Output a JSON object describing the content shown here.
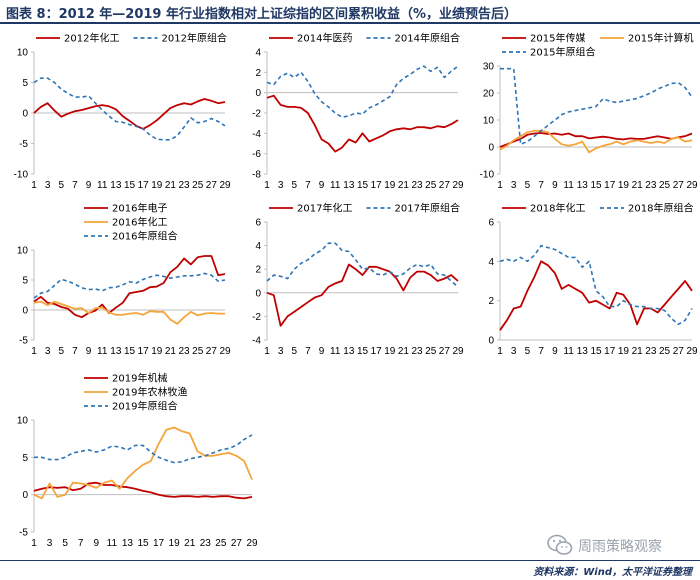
{
  "header": {
    "title": "图表 8：2012 年—2019 年行业指数相对上证综指的区间累积收益（%，业绩预告后）"
  },
  "footer": {
    "source": "资料来源：Wind，太平洋证券整理",
    "watermark_text": "周雨策略观察",
    "watermark_icon": "wechat-icon"
  },
  "colors": {
    "red": "#c00000",
    "blue": "#2e75b6",
    "orange": "#f4a53c",
    "axis": "#bfbfbf",
    "header": "#1f3864"
  },
  "chart_data": [
    {
      "type": "line",
      "id": "c2012",
      "x": [
        1,
        2,
        3,
        4,
        5,
        6,
        7,
        8,
        9,
        10,
        11,
        12,
        13,
        14,
        15,
        16,
        17,
        18,
        19,
        20,
        21,
        22,
        23,
        24,
        25,
        26,
        27,
        28,
        29
      ],
      "x_tick_labels": [
        "1",
        "3",
        "5",
        "7",
        "9",
        "11",
        "13",
        "15",
        "17",
        "19",
        "21",
        "23",
        "25",
        "27",
        "29"
      ],
      "ylim": [
        -10,
        10
      ],
      "yticks": [
        -10,
        -5,
        0,
        5,
        10
      ],
      "legend_columns": 2,
      "series": [
        {
          "name": "2012年化工",
          "style": "solid",
          "color": "#c00000",
          "values": [
            0,
            1,
            1.6,
            0.4,
            -0.6,
            -0.1,
            0.3,
            0.5,
            0.8,
            1.1,
            1.3,
            1.1,
            0.6,
            -0.5,
            -1.3,
            -2.1,
            -2.6,
            -2,
            -1.2,
            -0.2,
            0.8,
            1.3,
            1.6,
            1.4,
            1.9,
            2.3,
            2,
            1.6,
            1.8
          ]
        },
        {
          "name": "2012年原组合",
          "style": "dashed",
          "color": "#2e75b6",
          "values": [
            5,
            5.7,
            5.7,
            5,
            3.9,
            3.2,
            2.6,
            2.6,
            2.8,
            1.6,
            0.5,
            -0.5,
            -1.4,
            -1.5,
            -1.9,
            -2.2,
            -2.6,
            -3.6,
            -4.3,
            -4.4,
            -4.4,
            -3.7,
            -2.3,
            -0.8,
            -1.6,
            -1.4,
            -0.9,
            -1.4,
            -2.1
          ]
        }
      ]
    },
    {
      "type": "line",
      "id": "c2014",
      "x": [
        1,
        2,
        3,
        4,
        5,
        6,
        7,
        8,
        9,
        10,
        11,
        12,
        13,
        14,
        15,
        16,
        17,
        18,
        19,
        20,
        21,
        22,
        23,
        24,
        25,
        26,
        27,
        28,
        29
      ],
      "x_tick_labels": [
        "1",
        "3",
        "5",
        "7",
        "9",
        "11",
        "13",
        "15",
        "17",
        "19",
        "21",
        "23",
        "25",
        "27",
        "29"
      ],
      "ylim": [
        -8,
        4
      ],
      "yticks": [
        -8,
        -6,
        -4,
        -2,
        0,
        2,
        4
      ],
      "legend_columns": 2,
      "series": [
        {
          "name": "2014年医药",
          "style": "solid",
          "color": "#c00000",
          "values": [
            -0.5,
            -0.3,
            -1.2,
            -1.4,
            -1.4,
            -1.5,
            -2,
            -3.2,
            -4.6,
            -5,
            -5.8,
            -5.4,
            -4.6,
            -4.9,
            -4,
            -4.8,
            -4.5,
            -4.2,
            -3.8,
            -3.6,
            -3.5,
            -3.6,
            -3.4,
            -3.4,
            -3.5,
            -3.3,
            -3.4,
            -3.1,
            -2.7
          ]
        },
        {
          "name": "2014年原组合",
          "style": "dashed",
          "color": "#2e75b6",
          "values": [
            1,
            0.8,
            1.6,
            1.9,
            1.5,
            2,
            1.1,
            -0.1,
            -0.9,
            -1.4,
            -2,
            -2.4,
            -2.3,
            -2,
            -2.1,
            -1.5,
            -1.2,
            -0.8,
            -0.4,
            0.8,
            1.4,
            1.8,
            2.3,
            2.6,
            2.1,
            2.5,
            1.5,
            2.1,
            2.6
          ]
        }
      ]
    },
    {
      "type": "line",
      "id": "c2015",
      "x": [
        1,
        2,
        3,
        4,
        5,
        6,
        7,
        8,
        9,
        10,
        11,
        12,
        13,
        14,
        15,
        16,
        17,
        18,
        19,
        20,
        21,
        22,
        23,
        24,
        25,
        26,
        27,
        28,
        29
      ],
      "x_tick_labels": [
        "1",
        "3",
        "5",
        "7",
        "9",
        "11",
        "13",
        "15",
        "17",
        "19",
        "21",
        "23",
        "25",
        "27",
        "29"
      ],
      "ylim": [
        -10,
        30
      ],
      "yticks": [
        -10,
        0,
        10,
        20,
        30
      ],
      "legend_columns": 2,
      "series": [
        {
          "name": "2015年传媒",
          "style": "solid",
          "color": "#c00000",
          "values": [
            0,
            1,
            2,
            3,
            4.5,
            5,
            5.2,
            4.8,
            5,
            4.5,
            5,
            4,
            4,
            3.2,
            3.5,
            3.8,
            3.5,
            3,
            2.8,
            3.2,
            3,
            3,
            3.5,
            4,
            3.5,
            3,
            3.6,
            4,
            5
          ]
        },
        {
          "name": "2015年计算机",
          "style": "solid",
          "color": "#f4a53c",
          "values": [
            -1,
            0.5,
            2.5,
            4,
            5.5,
            6,
            6,
            5.5,
            3,
            1,
            0.5,
            1,
            2,
            -2,
            -0.5,
            0.5,
            1,
            2,
            1,
            2,
            2.5,
            2,
            1.5,
            2,
            1.5,
            3,
            3.5,
            2,
            2.5
          ]
        },
        {
          "name": "2015年原组合",
          "style": "dashed",
          "color": "#2e75b6",
          "values": [
            29,
            29,
            29,
            1,
            2,
            4,
            6,
            8,
            10,
            12,
            13,
            13.5,
            14,
            14.5,
            15,
            17.8,
            17,
            16.5,
            17,
            17.5,
            18,
            19,
            20,
            21.5,
            22.5,
            23.5,
            23.8,
            22,
            18.5
          ]
        }
      ]
    },
    {
      "type": "line",
      "id": "c2016",
      "x": [
        1,
        2,
        3,
        4,
        5,
        6,
        7,
        8,
        9,
        10,
        11,
        12,
        13,
        14,
        15,
        16,
        17,
        18,
        19,
        20,
        21,
        22,
        23,
        24,
        25,
        26,
        27,
        28,
        29
      ],
      "x_tick_labels": [
        "1",
        "3",
        "5",
        "7",
        "9",
        "11",
        "13",
        "15",
        "17",
        "19",
        "21",
        "23",
        "25",
        "27",
        "29"
      ],
      "ylim": [
        -5,
        10
      ],
      "yticks": [
        -5,
        0,
        5,
        10
      ],
      "legend_columns": 1,
      "series": [
        {
          "name": "2016年电子",
          "style": "solid",
          "color": "#c00000",
          "values": [
            1.4,
            2.2,
            1.2,
            1,
            0.5,
            0.2,
            -0.8,
            -1.2,
            -0.5,
            -0.1,
            0.9,
            -0.5,
            0.4,
            1.2,
            2.8,
            3,
            3.2,
            3.8,
            3.9,
            4.5,
            6.3,
            7.2,
            8.6,
            7.6,
            8.8,
            9,
            9,
            5.8,
            6
          ]
        },
        {
          "name": "2016年化工",
          "style": "solid",
          "color": "#f4a53c",
          "values": [
            1.2,
            1.4,
            0.8,
            1.4,
            1,
            0.6,
            0.2,
            0.3,
            -0.5,
            0.3,
            0.4,
            -0.4,
            -0.8,
            -0.8,
            -0.6,
            -0.5,
            -0.8,
            -0.2,
            -0.3,
            -0.3,
            -1.6,
            -2.3,
            -1.2,
            -0.3,
            -0.9,
            -0.6,
            -0.5,
            -0.6,
            -0.6
          ]
        },
        {
          "name": "2016年原组合",
          "style": "dashed",
          "color": "#2e75b6",
          "values": [
            2,
            2.8,
            3.1,
            4.1,
            5.1,
            4.8,
            4.3,
            3.7,
            3.4,
            3.5,
            3.2,
            3.7,
            3.8,
            4.2,
            4.7,
            4.5,
            5.1,
            5.5,
            5.8,
            5.6,
            5.3,
            5.5,
            5.7,
            5.7,
            5.8,
            6.1,
            5.8,
            4.8,
            5
          ]
        }
      ]
    },
    {
      "type": "line",
      "id": "c2017",
      "x": [
        1,
        2,
        3,
        4,
        5,
        6,
        7,
        8,
        9,
        10,
        11,
        12,
        13,
        14,
        15,
        16,
        17,
        18,
        19,
        20,
        21,
        22,
        23,
        24,
        25,
        26,
        27,
        28,
        29
      ],
      "x_tick_labels": [
        "1",
        "3",
        "5",
        "7",
        "9",
        "11",
        "13",
        "15",
        "17",
        "19",
        "21",
        "23",
        "25",
        "27",
        "29"
      ],
      "ylim": [
        -4,
        6
      ],
      "yticks": [
        -4,
        -2,
        0,
        2,
        4,
        6
      ],
      "legend_columns": 2,
      "series": [
        {
          "name": "2017年化工",
          "style": "solid",
          "color": "#c00000",
          "values": [
            0,
            -0.2,
            -2.8,
            -2,
            -1.6,
            -1.2,
            -0.8,
            -0.4,
            -0.2,
            0.5,
            0.8,
            1,
            2.4,
            2,
            1.5,
            2.2,
            2.2,
            2,
            1.8,
            1.2,
            0.2,
            1.3,
            1.8,
            1.8,
            1.5,
            1,
            1.2,
            1.5,
            1
          ]
        },
        {
          "name": "2017年原组合",
          "style": "dashed",
          "color": "#2e75b6",
          "values": [
            1,
            1.5,
            1.4,
            1.2,
            2,
            2.5,
            2.8,
            3.3,
            3.6,
            4.2,
            4.2,
            3.6,
            3.5,
            2.8,
            2,
            2.1,
            1.6,
            1.5,
            1.8,
            1.4,
            1.6,
            2.1,
            2.4,
            2.2,
            2.4,
            1.6,
            1.5,
            1,
            0.5
          ]
        }
      ]
    },
    {
      "type": "line",
      "id": "c2018",
      "x": [
        1,
        2,
        3,
        4,
        5,
        6,
        7,
        8,
        9,
        10,
        11,
        12,
        13,
        14,
        15,
        16,
        17,
        18,
        19,
        20,
        21,
        22,
        23,
        24,
        25,
        26,
        27,
        28,
        29
      ],
      "x_tick_labels": [
        "1",
        "3",
        "5",
        "7",
        "9",
        "11",
        "13",
        "15",
        "17",
        "19",
        "21",
        "23",
        "25",
        "27",
        "29"
      ],
      "ylim": [
        0,
        6
      ],
      "yticks": [
        0,
        2,
        4,
        6
      ],
      "legend_columns": 2,
      "series": [
        {
          "name": "2018年化工",
          "style": "solid",
          "color": "#c00000",
          "values": [
            0.5,
            1,
            1.6,
            1.7,
            2.5,
            3.2,
            4,
            3.8,
            3.4,
            2.6,
            2.8,
            2.6,
            2.4,
            1.9,
            2,
            1.8,
            1.6,
            2.4,
            2.3,
            1.8,
            0.8,
            1.6,
            1.6,
            1.4,
            1.8,
            2.2,
            2.6,
            3,
            2.5
          ]
        },
        {
          "name": "2018年原组合",
          "style": "dashed",
          "color": "#2e75b6",
          "values": [
            4,
            4.1,
            4,
            4.2,
            4,
            4.3,
            4.8,
            4.7,
            4.6,
            4.4,
            4.2,
            4.2,
            3.7,
            4,
            2.5,
            2.2,
            1.7,
            1.7,
            2,
            1.8,
            1.7,
            1.7,
            1.6,
            1.6,
            1.5,
            1.1,
            0.8,
            1,
            1.6
          ]
        }
      ]
    },
    {
      "type": "line",
      "id": "c2019",
      "x": [
        1,
        2,
        3,
        4,
        5,
        6,
        7,
        8,
        9,
        10,
        11,
        12,
        13,
        14,
        15,
        16,
        17,
        18,
        19,
        20,
        21,
        22,
        23,
        24,
        25,
        26,
        27,
        28,
        29
      ],
      "x_tick_labels": [
        "1",
        "3",
        "5",
        "7",
        "9",
        "11",
        "13",
        "15",
        "17",
        "19",
        "21",
        "23",
        "25",
        "27",
        "29"
      ],
      "ylim": [
        -5,
        10
      ],
      "yticks": [
        -5,
        0,
        5,
        10
      ],
      "legend_columns": 1,
      "series": [
        {
          "name": "2019年机械",
          "style": "solid",
          "color": "#c00000",
          "values": [
            0.5,
            0.8,
            1,
            0.9,
            1,
            0.6,
            0.8,
            1.5,
            1.6,
            1.3,
            1.3,
            1.1,
            1,
            0.8,
            0.5,
            0.3,
            0,
            -0.2,
            -0.3,
            -0.2,
            -0.2,
            -0.3,
            -0.2,
            -0.3,
            -0.2,
            -0.2,
            -0.4,
            -0.5,
            -0.3
          ]
        },
        {
          "name": "2019年农林牧渔",
          "style": "solid",
          "color": "#f4a53c",
          "values": [
            0,
            -0.5,
            1.5,
            -0.3,
            0,
            1.6,
            1.5,
            1.3,
            0.9,
            1.6,
            1.9,
            0.8,
            2.2,
            3.2,
            4,
            4.5,
            6.8,
            8.7,
            9,
            8.5,
            8.2,
            5.8,
            5.2,
            5.2,
            5.4,
            5.6,
            5.2,
            4.5,
            2
          ]
        },
        {
          "name": "2019年原组合",
          "style": "dashed",
          "color": "#2e75b6",
          "values": [
            5,
            5,
            4.7,
            4.7,
            5,
            5.6,
            5.8,
            6,
            5.7,
            6,
            6.5,
            6.4,
            6,
            6.6,
            6.6,
            5.7,
            5,
            4.6,
            4.3,
            4.4,
            4.8,
            5,
            5.2,
            5.6,
            6,
            6.2,
            6.6,
            7.4,
            8
          ]
        }
      ]
    }
  ]
}
